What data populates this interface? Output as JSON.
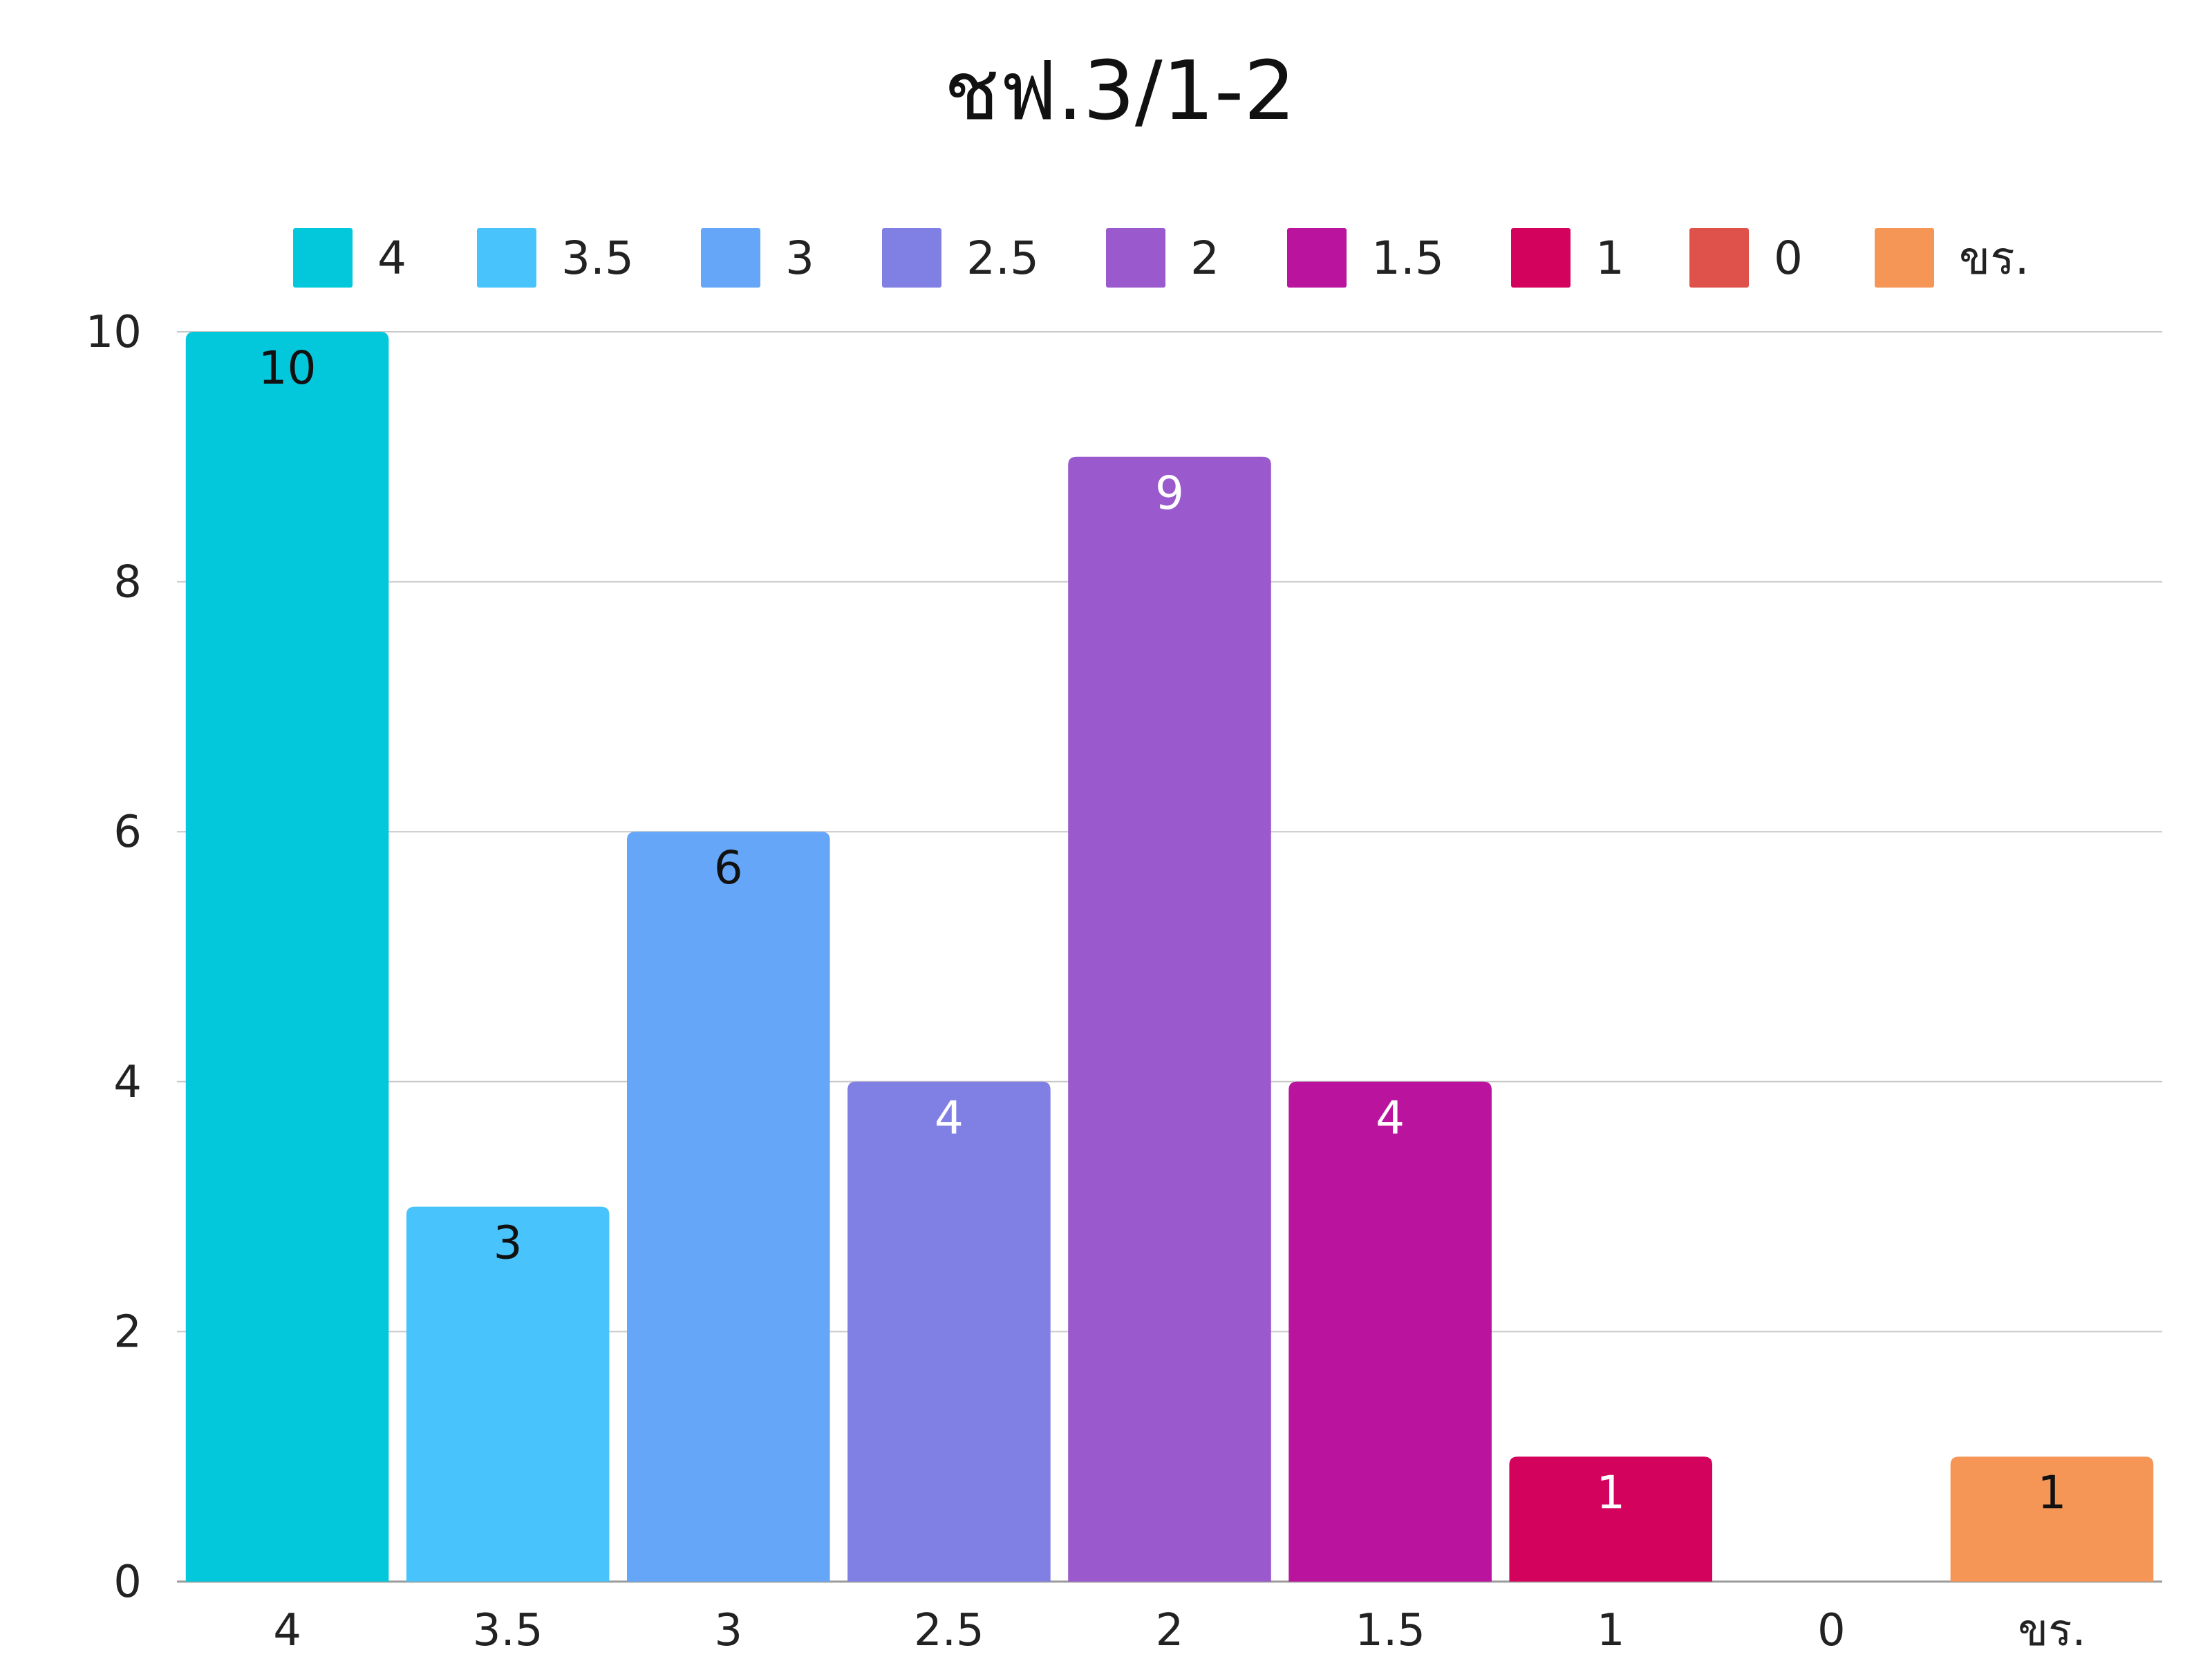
{
  "chart_data": {
    "type": "bar",
    "title": "ชฟ.3/1-2",
    "categories": [
      "4",
      "3.5",
      "3",
      "2.5",
      "2",
      "1.5",
      "1",
      "0",
      "ขร."
    ],
    "values": [
      10,
      3,
      6,
      4,
      9,
      4,
      1,
      0,
      1
    ],
    "colors": [
      "#03c8dc",
      "#48c3fb",
      "#66a6f8",
      "#8080e4",
      "#9a59cc",
      "#ba139e",
      "#d3025c",
      "#df524b",
      "#f69656"
    ],
    "label_colors": [
      "#111111",
      "#111111",
      "#111111",
      "#ffffff",
      "#ffffff",
      "#ffffff",
      "#ffffff",
      "#ffffff",
      "#111111"
    ],
    "ylim": [
      0,
      10
    ],
    "yticks": [
      0,
      2,
      4,
      6,
      8,
      10
    ],
    "grid": true,
    "legend_position": "top",
    "xlabel": "",
    "ylabel": ""
  }
}
